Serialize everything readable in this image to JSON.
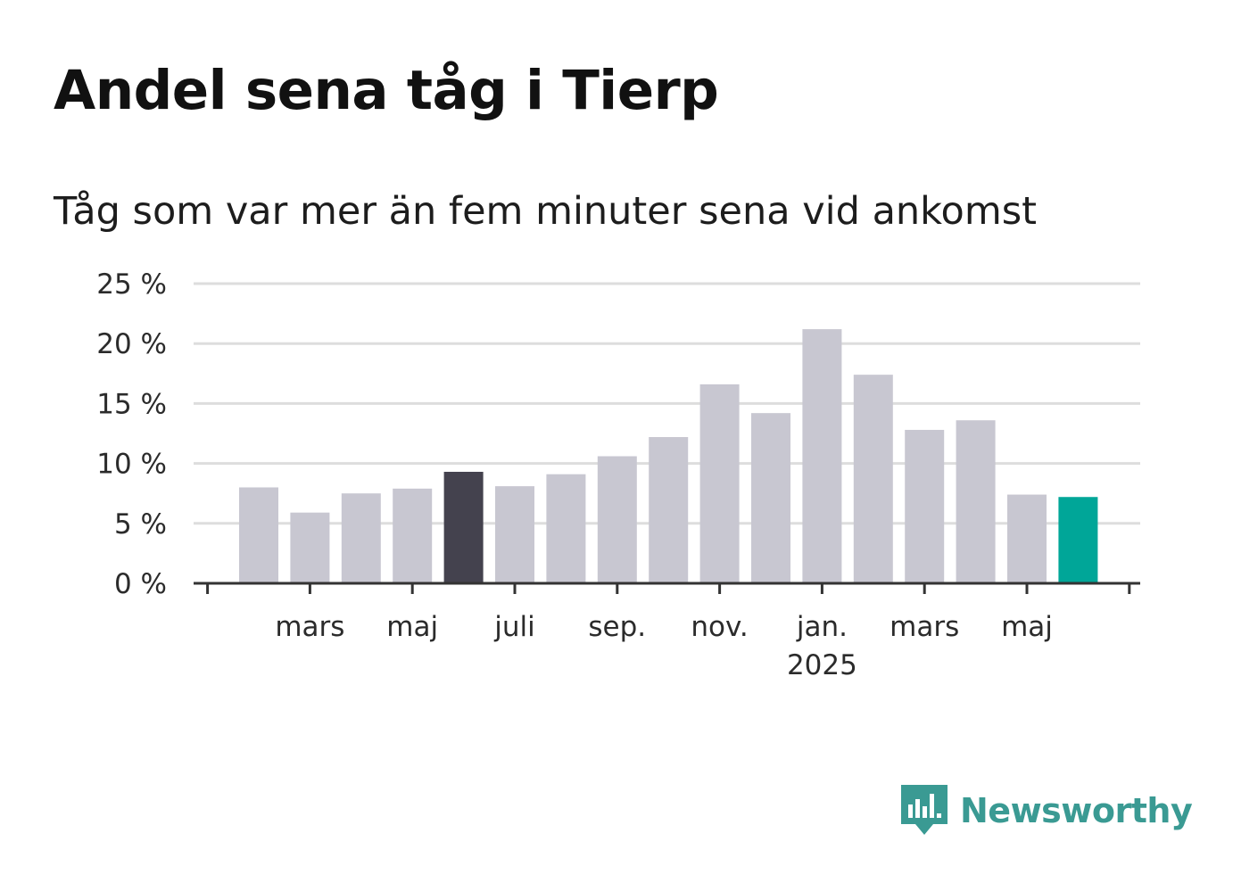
{
  "header": {
    "title": "Andel sena tåg i Tierp",
    "subtitle": "Tåg som var mer än fem minuter sena vid ankomst"
  },
  "brand": {
    "name": "Newsworthy",
    "color": "#3a9a93",
    "icon": "newsworthy-logo-icon"
  },
  "colors": {
    "bar_default": "#c8c7d1",
    "bar_highlight": "#44424e",
    "bar_latest": "#00a698",
    "gridline": "#dddddd",
    "axis": "#333333"
  },
  "chart_data": {
    "type": "bar",
    "title": "Andel sena tåg i Tierp",
    "subtitle": "Tåg som var mer än fem minuter sena vid ankomst",
    "xlabel": "",
    "ylabel": "",
    "ylim": [
      0,
      25
    ],
    "yticks": [
      0,
      5,
      10,
      15,
      20,
      25
    ],
    "ytick_labels": [
      "0 %",
      "5 %",
      "10 %",
      "15 %",
      "20 %",
      "25 %"
    ],
    "grid": true,
    "legend": "none",
    "categories": [
      "2024-02",
      "2024-03",
      "2024-04",
      "2024-05",
      "2024-06",
      "2024-07",
      "2024-08",
      "2024-09",
      "2024-10",
      "2024-11",
      "2024-12",
      "2025-01",
      "2025-02",
      "2025-03",
      "2025-04",
      "2025-05",
      "2025-06"
    ],
    "values": [
      8.0,
      5.9,
      7.5,
      7.9,
      9.3,
      8.1,
      9.1,
      10.6,
      12.2,
      16.6,
      14.2,
      21.2,
      17.4,
      12.8,
      13.6,
      7.4,
      7.2
    ],
    "highlight": {
      "2024-06": "bar_highlight",
      "2025-06": "bar_latest"
    },
    "xtick_labels": [
      {
        "category": "2024-03",
        "label": "mars"
      },
      {
        "category": "2024-05",
        "label": "maj"
      },
      {
        "category": "2024-07",
        "label": "juli"
      },
      {
        "category": "2024-09",
        "label": "sep."
      },
      {
        "category": "2024-11",
        "label": "nov."
      },
      {
        "category": "2025-01",
        "label": "jan.",
        "sublabel": "2025"
      },
      {
        "category": "2025-03",
        "label": "mars"
      },
      {
        "category": "2025-05",
        "label": "maj"
      }
    ]
  }
}
